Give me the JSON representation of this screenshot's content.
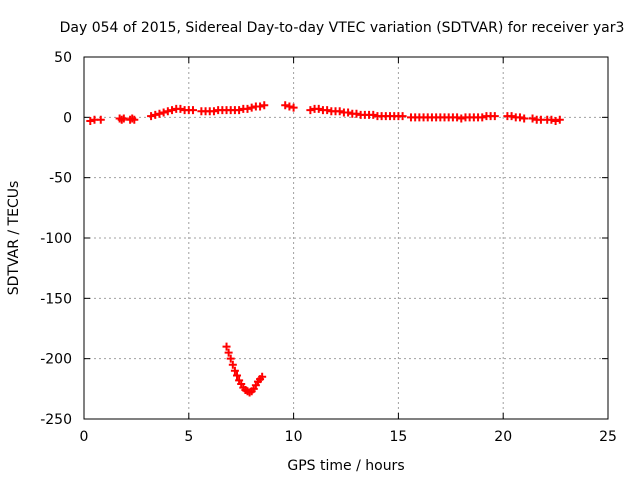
{
  "chart_data": {
    "type": "scatter",
    "title": "Day 054 of 2015, Sidereal Day-to-day VTEC variation (SDTVAR) for receiver yar3",
    "xlabel": "GPS time / hours",
    "ylabel": "SDTVAR / TECUs",
    "xlim": [
      0,
      25
    ],
    "ylim": [
      -250,
      50
    ],
    "xticks": [
      0,
      5,
      10,
      15,
      20,
      25
    ],
    "yticks": [
      -250,
      -200,
      -150,
      -100,
      -50,
      0,
      50
    ],
    "grid": true,
    "marker": "plus",
    "color": "#ff0000",
    "series": [
      {
        "name": "SDTVAR",
        "points": [
          [
            0.3,
            -3
          ],
          [
            0.5,
            -2
          ],
          [
            0.8,
            -2
          ],
          [
            1.7,
            -1
          ],
          [
            1.8,
            -2
          ],
          [
            1.9,
            -1
          ],
          [
            2.2,
            -2
          ],
          [
            2.3,
            -1
          ],
          [
            2.4,
            -2
          ],
          [
            3.2,
            1
          ],
          [
            3.4,
            2
          ],
          [
            3.6,
            3
          ],
          [
            3.8,
            4
          ],
          [
            4.0,
            5
          ],
          [
            4.2,
            6
          ],
          [
            4.4,
            7
          ],
          [
            4.6,
            7
          ],
          [
            4.8,
            6
          ],
          [
            5.0,
            6
          ],
          [
            5.2,
            6
          ],
          [
            5.6,
            5
          ],
          [
            5.8,
            5
          ],
          [
            6.0,
            5
          ],
          [
            6.2,
            5
          ],
          [
            6.4,
            6
          ],
          [
            6.6,
            6
          ],
          [
            6.8,
            6
          ],
          [
            7.0,
            6
          ],
          [
            7.2,
            6
          ],
          [
            7.4,
            6
          ],
          [
            7.6,
            7
          ],
          [
            7.8,
            7
          ],
          [
            8.0,
            8
          ],
          [
            8.2,
            9
          ],
          [
            8.4,
            9
          ],
          [
            8.6,
            10
          ],
          [
            9.6,
            10
          ],
          [
            9.8,
            9
          ],
          [
            10.0,
            8
          ],
          [
            10.8,
            6
          ],
          [
            11.0,
            7
          ],
          [
            11.2,
            7
          ],
          [
            11.4,
            6
          ],
          [
            11.6,
            6
          ],
          [
            11.8,
            5
          ],
          [
            12.0,
            5
          ],
          [
            12.2,
            5
          ],
          [
            12.4,
            4
          ],
          [
            12.6,
            4
          ],
          [
            12.8,
            3
          ],
          [
            13.0,
            3
          ],
          [
            13.2,
            2
          ],
          [
            13.4,
            2
          ],
          [
            13.6,
            2
          ],
          [
            13.8,
            2
          ],
          [
            14.0,
            1
          ],
          [
            14.2,
            1
          ],
          [
            14.4,
            1
          ],
          [
            14.6,
            1
          ],
          [
            14.8,
            1
          ],
          [
            15.0,
            1
          ],
          [
            15.2,
            1
          ],
          [
            15.6,
            0
          ],
          [
            15.8,
            0
          ],
          [
            16.0,
            0
          ],
          [
            16.2,
            0
          ],
          [
            16.4,
            0
          ],
          [
            16.6,
            0
          ],
          [
            16.8,
            0
          ],
          [
            17.0,
            0
          ],
          [
            17.2,
            0
          ],
          [
            17.4,
            0
          ],
          [
            17.6,
            0
          ],
          [
            17.8,
            0
          ],
          [
            18.0,
            -1
          ],
          [
            18.2,
            0
          ],
          [
            18.4,
            0
          ],
          [
            18.6,
            0
          ],
          [
            18.8,
            0
          ],
          [
            19.0,
            0
          ],
          [
            19.2,
            1
          ],
          [
            19.4,
            1
          ],
          [
            19.6,
            1
          ],
          [
            20.2,
            1
          ],
          [
            20.4,
            1
          ],
          [
            20.6,
            0
          ],
          [
            20.8,
            0
          ],
          [
            21.0,
            -1
          ],
          [
            21.4,
            -1
          ],
          [
            21.6,
            -2
          ],
          [
            21.8,
            -2
          ],
          [
            22.1,
            -2
          ],
          [
            22.3,
            -2
          ],
          [
            22.5,
            -3
          ],
          [
            22.7,
            -2
          ],
          [
            6.8,
            -190
          ],
          [
            6.9,
            -195
          ],
          [
            7.0,
            -200
          ],
          [
            7.1,
            -205
          ],
          [
            7.2,
            -210
          ],
          [
            7.3,
            -214
          ],
          [
            7.4,
            -218
          ],
          [
            7.5,
            -221
          ],
          [
            7.6,
            -224
          ],
          [
            7.7,
            -226
          ],
          [
            7.8,
            -227
          ],
          [
            7.9,
            -228
          ],
          [
            8.0,
            -227
          ],
          [
            8.1,
            -225
          ],
          [
            8.2,
            -222
          ],
          [
            8.3,
            -219
          ],
          [
            8.4,
            -217
          ],
          [
            8.5,
            -215
          ]
        ]
      }
    ]
  }
}
